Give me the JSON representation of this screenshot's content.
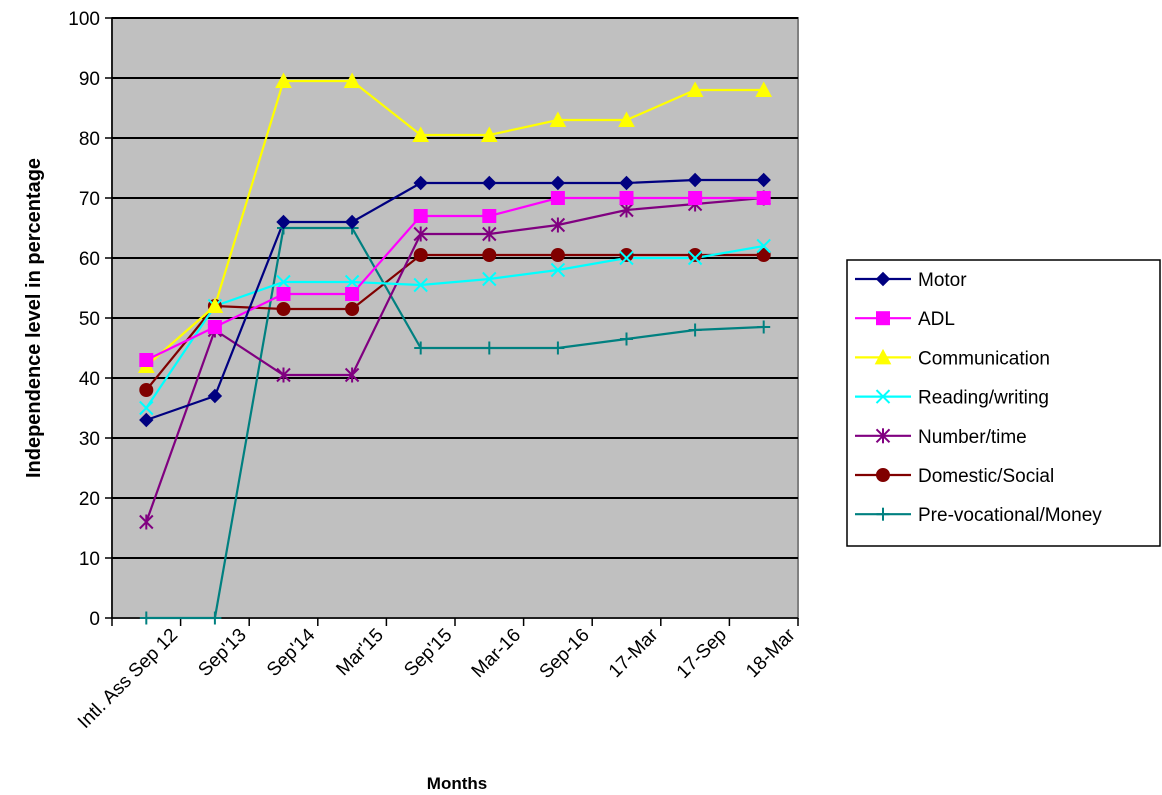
{
  "chart_data": {
    "type": "line",
    "title": "",
    "xlabel": "Months",
    "ylabel": "Independence level in percentage",
    "ylim": [
      0,
      100
    ],
    "ytick_step": 10,
    "grid": true,
    "legend_position": "right",
    "plot_background": "#c0c0c0",
    "categories": [
      "Intl. Ass Sep 12",
      "Sep'13",
      "Sep'14",
      "Mar'15",
      "Sep'15",
      "Mar-16",
      "Sep-16",
      "17-Mar",
      "17-Sep",
      "18-Mar"
    ],
    "series": [
      {
        "name": "Motor",
        "color": "#000080",
        "marker": "diamond",
        "values": [
          33,
          37,
          66,
          66,
          72.5,
          72.5,
          72.5,
          72.5,
          73,
          73
        ]
      },
      {
        "name": "ADL",
        "color": "#ff00ff",
        "marker": "square",
        "values": [
          43,
          48.5,
          54,
          54,
          67,
          67,
          70,
          70,
          70,
          70
        ]
      },
      {
        "name": "Communication",
        "color": "#ffff00",
        "marker": "triangle",
        "values": [
          42,
          52,
          89.5,
          89.5,
          80.5,
          80.5,
          83,
          83,
          88,
          88
        ]
      },
      {
        "name": "Reading/writing",
        "color": "#00ffff",
        "marker": "x",
        "values": [
          35,
          52,
          56,
          56,
          55.5,
          56.5,
          58,
          60,
          60,
          62
        ]
      },
      {
        "name": "Number/time",
        "color": "#800080",
        "marker": "star",
        "values": [
          16,
          48,
          40.5,
          40.5,
          64,
          64,
          65.5,
          68,
          69,
          70
        ]
      },
      {
        "name": "Domestic/Social",
        "color": "#800000",
        "marker": "circle",
        "values": [
          38,
          52,
          51.5,
          51.5,
          60.5,
          60.5,
          60.5,
          60.5,
          60.5,
          60.5
        ]
      },
      {
        "name": "Pre-vocational/Money",
        "color": "#008080",
        "marker": "plus",
        "values": [
          0,
          0,
          65,
          65,
          45,
          45,
          45,
          46.5,
          48,
          48.5
        ]
      }
    ]
  }
}
